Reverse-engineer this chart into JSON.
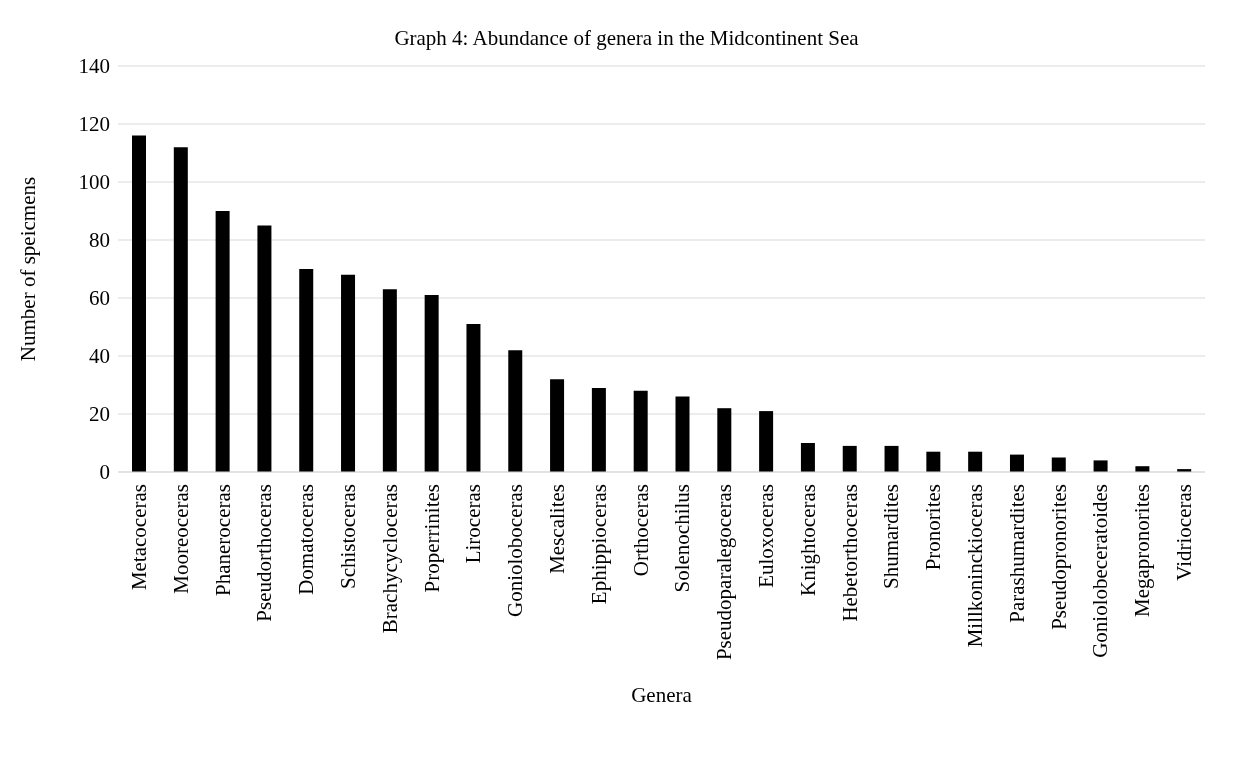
{
  "chart_data": {
    "type": "bar",
    "title": "Graph 4: Abundance of genera in the Midcontinent Sea",
    "xlabel": "Genera",
    "ylabel": "Number of speicmens",
    "categories": [
      "Metacoceras",
      "Mooreoceras",
      "Phaneroceras",
      "Pseudorthoceras",
      "Domatoceras",
      "Schistoceras",
      "Brachycycloceras",
      "Properrinites",
      "Liroceras",
      "Gonioloboceras",
      "Mescalites",
      "Ephippioceras",
      "Orthoceras",
      "Solenochilus",
      "Pseudoparalegoceras",
      "Euloxoceras",
      "Knightoceras",
      "Hebetorthoceras",
      "Shumardites",
      "Pronorites",
      "Millkoninckioceras",
      "Parashumardites",
      "Pseudopronorites",
      "Goniolobeceratoides",
      "Megapronorites",
      "Vidrioceras"
    ],
    "values": [
      116,
      112,
      90,
      85,
      70,
      68,
      63,
      61,
      51,
      42,
      32,
      29,
      28,
      26,
      22,
      21,
      10,
      9,
      9,
      7,
      7,
      6,
      5,
      4,
      2,
      1
    ],
    "color": "#000000",
    "ylim": [
      0,
      140
    ],
    "yticks": [
      0,
      20,
      40,
      60,
      80,
      100,
      120,
      140
    ],
    "grid": "y"
  }
}
